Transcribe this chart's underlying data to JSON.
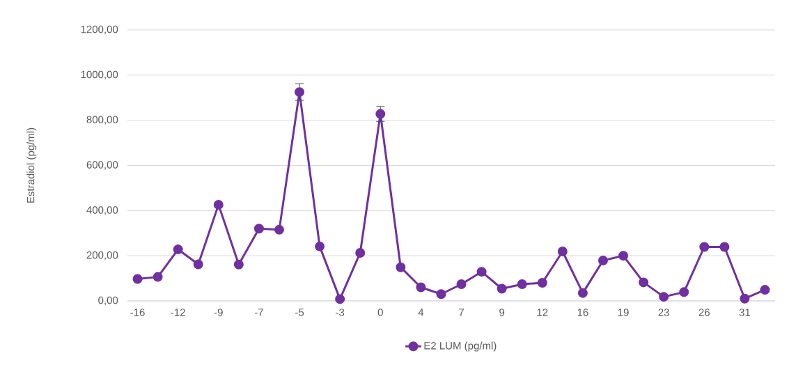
{
  "chart_data": {
    "type": "line",
    "ylabel": "Estradiol (pg/ml)",
    "categories": [
      "-16",
      null,
      "-12",
      null,
      "-9",
      null,
      "-7",
      null,
      "-5",
      null,
      "-3",
      null,
      "0",
      null,
      "4",
      null,
      "7",
      null,
      "9",
      null,
      "12",
      null,
      "16",
      null,
      "19",
      null,
      "23",
      null,
      "26",
      null,
      "31",
      null
    ],
    "series": [
      {
        "name": "E2 LUM (pg/ml)",
        "color": "#7030a0",
        "values": [
          97,
          106,
          228,
          162,
          426,
          161,
          320,
          315,
          925,
          241,
          8,
          213,
          828,
          149,
          60,
          30,
          74,
          129,
          54,
          74,
          80,
          219,
          35,
          179,
          200,
          82,
          18,
          39,
          239,
          239,
          10,
          49
        ],
        "errors": [
          null,
          null,
          null,
          null,
          null,
          null,
          null,
          null,
          37,
          null,
          null,
          null,
          33,
          null,
          null,
          null,
          null,
          null,
          null,
          null,
          null,
          null,
          null,
          null,
          null,
          null,
          null,
          null,
          null,
          null,
          null,
          null
        ]
      }
    ],
    "ylim": [
      0,
      1200
    ],
    "yticks": [
      {
        "value": 0,
        "label": "0,00"
      },
      {
        "value": 200,
        "label": "200,00"
      },
      {
        "value": 400,
        "label": "400,00"
      },
      {
        "value": 600,
        "label": "600,00"
      },
      {
        "value": 800,
        "label": "800,00"
      },
      {
        "value": 1000,
        "label": "1000,00"
      },
      {
        "value": 1200,
        "label": "1200,00"
      }
    ],
    "grid": "y",
    "legend": "bottom",
    "marker": "circle",
    "line_style": "solid"
  }
}
